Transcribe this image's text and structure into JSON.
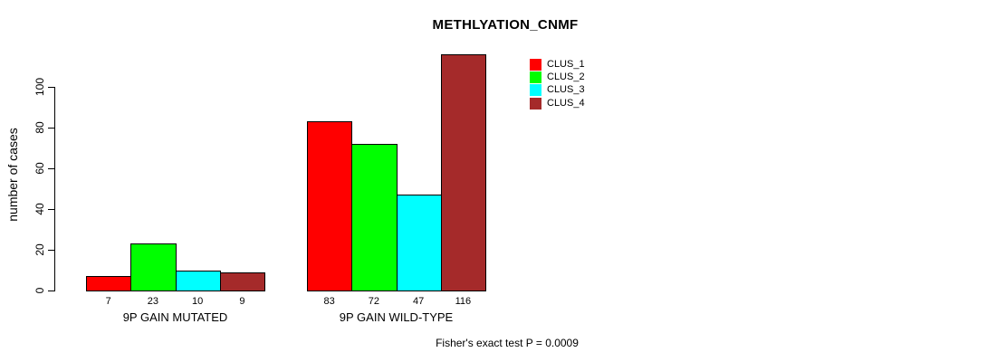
{
  "chart_data": {
    "type": "bar",
    "title": "METHLYATION_CNMF",
    "ylabel": "number of cases",
    "xlabel": "",
    "categories": [
      "9P GAIN MUTATED",
      "9P GAIN WILD-TYPE"
    ],
    "series": [
      {
        "name": "CLUS_1",
        "color": "#FF0000",
        "values": [
          7,
          83
        ]
      },
      {
        "name": "CLUS_2",
        "color": "#00FF00",
        "values": [
          23,
          72
        ]
      },
      {
        "name": "CLUS_3",
        "color": "#00FFFF",
        "values": [
          10,
          47
        ]
      },
      {
        "name": "CLUS_4",
        "color": "#A52A2A",
        "values": [
          9,
          116
        ]
      }
    ],
    "bar_value_labels": [
      [
        7,
        23,
        10,
        9
      ],
      [
        83,
        72,
        47,
        116
      ]
    ],
    "yticks": [
      0,
      20,
      40,
      60,
      80,
      100
    ],
    "ylim": [
      0,
      116
    ],
    "grid": false,
    "legend_position": "upper-right-of-plot",
    "axis_color": "#000000",
    "background_color": "#FFFFFF",
    "annotation": "Fisher's exact test P = 0.0009"
  }
}
